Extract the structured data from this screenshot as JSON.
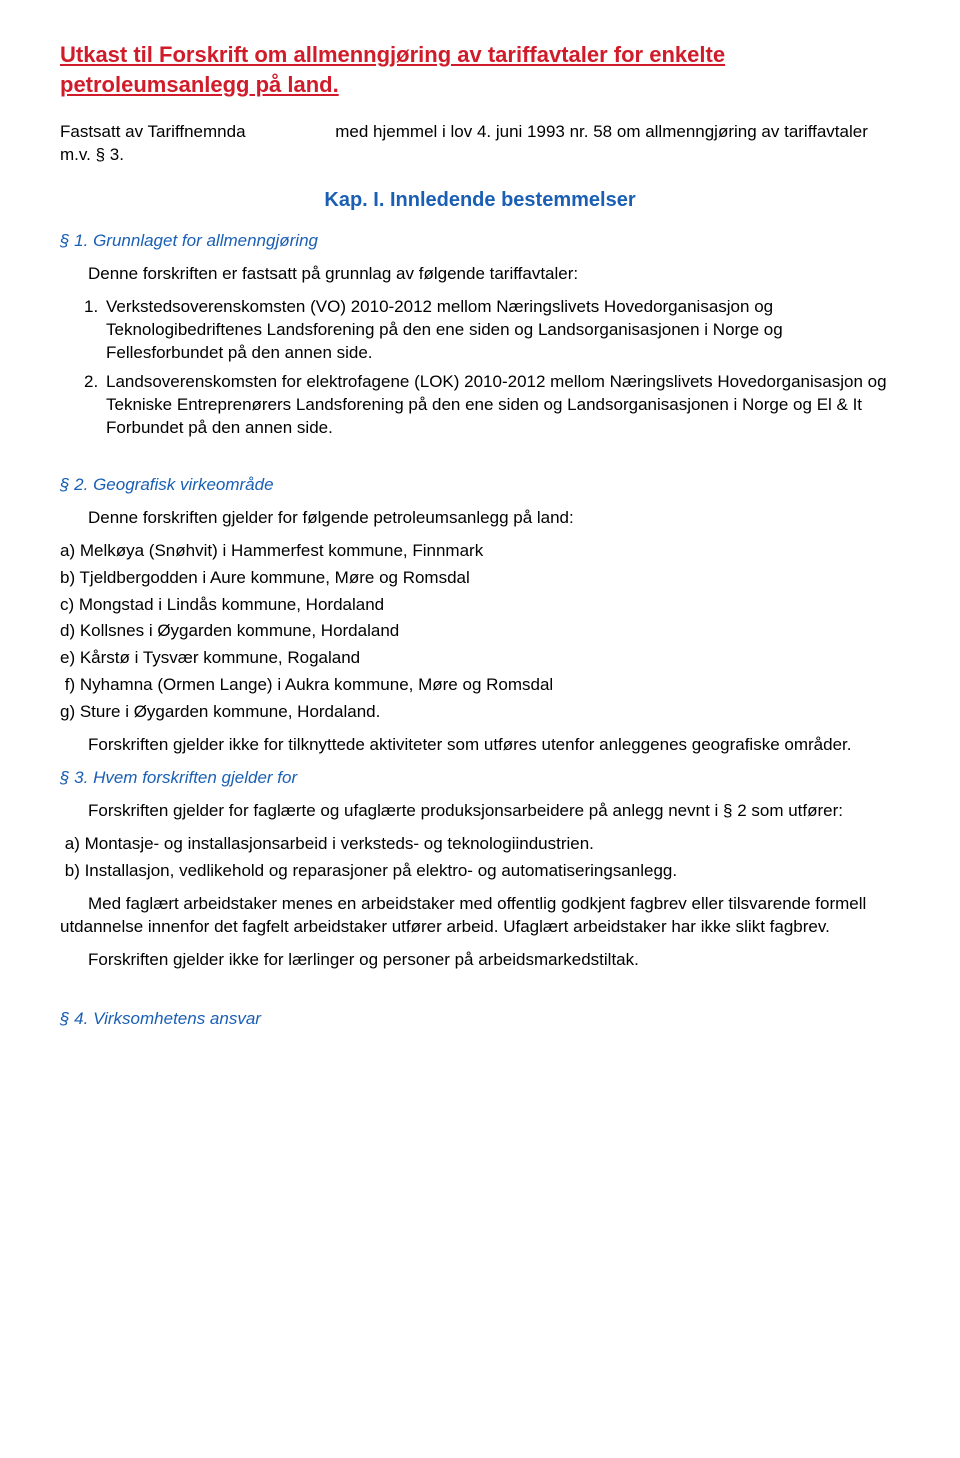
{
  "title": "Utkast til Forskrift om allmenngjøring av tariffavtaler for enkelte petroleumsanlegg på land.",
  "intro": "Fastsatt av Tariffnemnda                   med hjemmel i lov 4. juni 1993 nr. 58 om allmenngjøring av tariffavtaler m.v. § 3.",
  "kap": "Kap. I. Innledende bestemmelser",
  "s1": {
    "head": "§ 1. Grunnlaget for allmenngjøring",
    "lead": "Denne forskriften er fastsatt på grunnlag av følgende tariffavtaler:",
    "items": [
      "Verkstedsoverenskomsten (VO) 2010-2012 mellom Næringslivets Hovedorganisasjon og Teknologibedriftenes Landsforening på den ene siden og Landsorganisasjonen i Norge og Fellesforbundet på den annen side.",
      "Landsoverenskomsten for elektrofagene (LOK) 2010-2012 mellom Næringslivets Hovedorganisasjon og Tekniske Entreprenørers Landsforening på den ene siden og Landsorganisasjonen i Norge og El & It Forbundet på den annen side."
    ]
  },
  "s2": {
    "head": "§ 2. Geografisk virkeområde",
    "lead": "Denne forskriften gjelder for følgende petroleumsanlegg på land:",
    "items": [
      "a) Melkøya (Snøhvit) i Hammerfest kommune, Finnmark",
      "b) Tjeldbergodden i Aure kommune, Møre og Romsdal",
      "c) Mongstad i Lindås kommune, Hordaland",
      "d) Kollsnes i Øygarden kommune, Hordaland",
      "e) Kårstø i Tysvær kommune, Rogaland",
      "f) Nyhamna (Ormen Lange) i Aukra kommune, Møre og Romsdal",
      "g) Sture i Øygarden kommune, Hordaland."
    ],
    "tail": "Forskriften gjelder ikke for tilknyttede aktiviteter som utføres utenfor anleggenes geografiske områder."
  },
  "s3": {
    "head": "§ 3. Hvem forskriften gjelder for",
    "lead": "Forskriften gjelder for faglærte og ufaglærte produksjonsarbeidere på anlegg nevnt i § 2 som utfører:",
    "items": [
      "a) Montasje- og installasjonsarbeid i verksteds- og teknologiindustrien.",
      "b) Installasjon, vedlikehold og reparasjoner på elektro- og automatiseringsanlegg."
    ],
    "def": "Med faglært arbeidstaker menes en arbeidstaker med offentlig godkjent fagbrev eller tilsvarende formell utdannelse innenfor det fagfelt arbeidstaker utfører arbeid. Ufaglært arbeidstaker har ikke slikt fagbrev.",
    "excl": "Forskriften gjelder ikke for lærlinger og personer på arbeidsmarkedstiltak."
  },
  "s4": {
    "head": "§ 4. Virksomhetens ansvar"
  }
}
